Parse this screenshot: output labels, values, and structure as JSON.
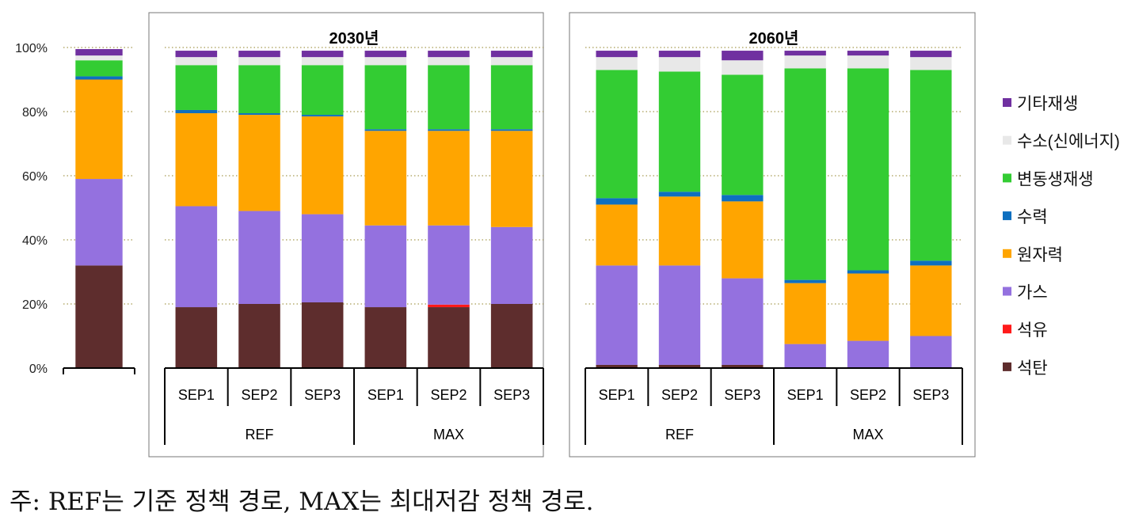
{
  "chart_data": {
    "type": "bar",
    "stacked": true,
    "ylim": [
      0,
      100
    ],
    "yticks": [
      "0%",
      "20%",
      "40%",
      "60%",
      "80%",
      "100%"
    ],
    "grid": true,
    "legend_position": "right",
    "series_names": [
      "석탄",
      "석유",
      "가스",
      "원자력",
      "수력",
      "변동생재생",
      "수소(신에너지)",
      "기타재생"
    ],
    "series_colors": [
      "#5e2d2d",
      "#ff1a1a",
      "#9471df",
      "#ffa500",
      "#0e6fc0",
      "#33cc33",
      "#e8e8e8",
      "#7030a0"
    ],
    "legend_order": [
      "기타재생",
      "수소(신에너지)",
      "변동생재생",
      "수력",
      "원자력",
      "가스",
      "석유",
      "석탄"
    ],
    "panels": [
      {
        "title": "",
        "bars": [
          {
            "label": "",
            "values": [
              32,
              0,
              27,
              31,
              1,
              5,
              1.5,
              2
            ]
          }
        ],
        "groups": []
      },
      {
        "title": "2030년",
        "bars": [
          {
            "label": "SEP1",
            "values": [
              19,
              0,
              31.5,
              29,
              1,
              14,
              2.5,
              2
            ]
          },
          {
            "label": "SEP2",
            "values": [
              20,
              0,
              29,
              30,
              0.5,
              15,
              2.5,
              2
            ]
          },
          {
            "label": "SEP3",
            "values": [
              20.5,
              0,
              27.5,
              30.5,
              0.5,
              15.5,
              2.5,
              2
            ]
          },
          {
            "label": "SEP1",
            "values": [
              19,
              0,
              25.5,
              29.5,
              0.5,
              20,
              2.5,
              2
            ]
          },
          {
            "label": "SEP2",
            "values": [
              19,
              0.8,
              24.7,
              29.5,
              0.5,
              20,
              2.5,
              2
            ]
          },
          {
            "label": "SEP3",
            "values": [
              20,
              0,
              24,
              30,
              0.5,
              20,
              2.5,
              2
            ]
          }
        ],
        "groups": [
          {
            "label": "REF",
            "span": 3
          },
          {
            "label": "MAX",
            "span": 3
          }
        ]
      },
      {
        "title": "2060년",
        "bars": [
          {
            "label": "SEP1",
            "values": [
              1,
              0,
              31,
              19,
              2,
              40,
              4,
              2
            ]
          },
          {
            "label": "SEP2",
            "values": [
              1,
              0,
              31,
              21.5,
              1.5,
              37.5,
              4.5,
              2
            ]
          },
          {
            "label": "SEP3",
            "values": [
              1,
              0,
              27,
              24,
              2,
              37.5,
              4.5,
              3
            ]
          },
          {
            "label": "SEP1",
            "values": [
              0,
              0,
              7.5,
              19,
              1,
              66,
              4,
              1.5
            ]
          },
          {
            "label": "SEP2",
            "values": [
              0,
              0,
              8.5,
              21,
              1,
              63,
              4,
              1.5
            ]
          },
          {
            "label": "SEP3",
            "values": [
              0,
              0,
              10,
              22,
              1.5,
              59.5,
              4,
              2
            ]
          }
        ],
        "groups": [
          {
            "label": "REF",
            "span": 3
          },
          {
            "label": "MAX",
            "span": 3
          }
        ]
      }
    ]
  },
  "note": "주: REF는 기준 정책 경로, MAX는 최대저감 정책 경로."
}
